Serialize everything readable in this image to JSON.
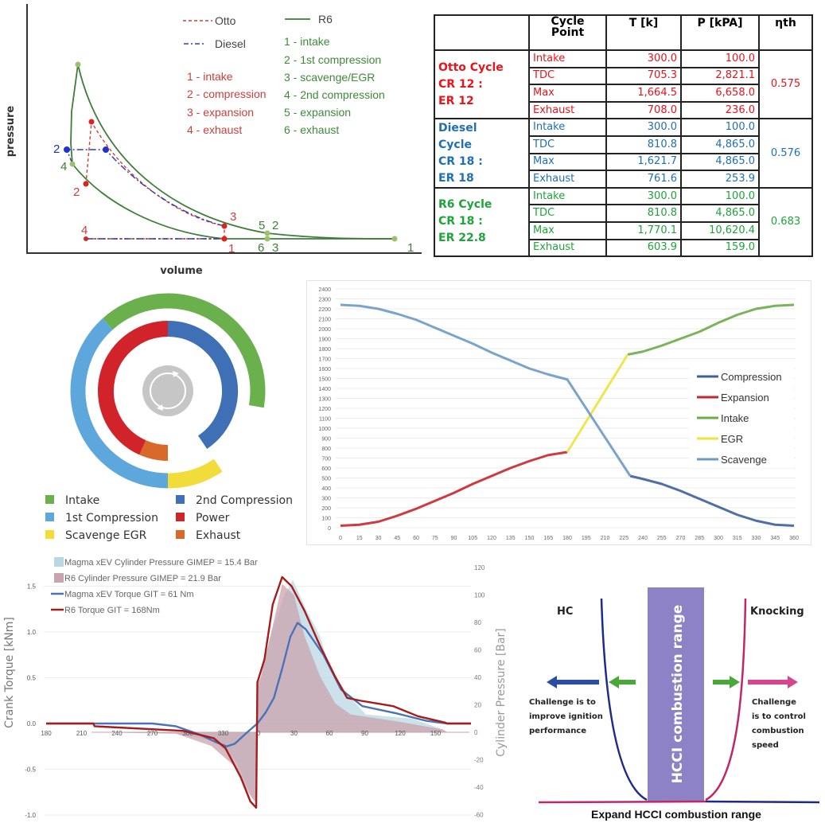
{
  "chart_data": [
    {
      "type": "line",
      "xlabel": "volume",
      "ylabel": "pressure",
      "legend": [
        {
          "name": "Otto",
          "color": "#c8413e",
          "style": "dashed"
        },
        {
          "name": "Diesel",
          "color": "#2f3fa8",
          "style": "dash-dot"
        },
        {
          "name": "R6",
          "color": "#3f7d3a",
          "style": "solid"
        }
      ],
      "otto_points": [
        "1 - intake",
        "2 - compression",
        "3 - expansion",
        "4 - exhaust"
      ],
      "r6_points": [
        "1 - intake",
        "2 - 1st compression",
        "3 - scavenge/EGR",
        "4 - 2nd compression",
        "5 - expansion",
        "6 - exhaust"
      ],
      "point_labels": {
        "diesel_2": "2",
        "r6_4": "4",
        "otto_2": "2",
        "otto_3": "3",
        "otto_4": "4",
        "otto_1": "1",
        "r6_5": "5",
        "r6_2": "2",
        "r6_6": "6",
        "r6_3": "3",
        "r6_1": "1"
      }
    },
    {
      "type": "table",
      "headers": [
        "",
        "Cycle Point",
        "T [k]",
        "P [kPA]",
        "ηth"
      ],
      "groups": [
        {
          "name": [
            "Otto Cycle",
            "CR 12 :",
            "ER 12"
          ],
          "color": "#e8141b",
          "eta": "0.575",
          "rows": [
            [
              "Intake",
              "300.0",
              "100.0"
            ],
            [
              "TDC",
              "705.3",
              "2,821.1"
            ],
            [
              "Max",
              "1,664.5",
              "6,658.0"
            ],
            [
              "Exhaust",
              "708.0",
              "236.0"
            ]
          ]
        },
        {
          "name": [
            "Diesel",
            "Cycle",
            "CR 18 :",
            "ER 18"
          ],
          "color": "#1f6fb4",
          "eta": "0.576",
          "rows": [
            [
              "Intake",
              "300.0",
              "100.0"
            ],
            [
              "TDC",
              "810.8",
              "4,865.0"
            ],
            [
              "Max",
              "1,621.7",
              "4,865.0"
            ],
            [
              "Exhaust",
              "761.6",
              "253.9"
            ]
          ]
        },
        {
          "name": [
            "R6 Cycle",
            "CR 18 :",
            "ER 22.8"
          ],
          "color": "#1fa33b",
          "eta": "0.683",
          "rows": [
            [
              "Intake",
              "300.0",
              "100.0"
            ],
            [
              "TDC",
              "810.8",
              "4,865.0"
            ],
            [
              "Max",
              "1,770.1",
              "10,620.4"
            ],
            [
              "Exhaust",
              "603.9",
              "159.0"
            ]
          ]
        }
      ]
    },
    {
      "type": "donut",
      "unit": "crank degrees",
      "outer_ring": [
        {
          "label": "1st Compression",
          "start": 180,
          "end": 318,
          "color": "#5ea7dd"
        },
        {
          "label": "Intake",
          "start": 318,
          "end": 460,
          "color": "#6ab04c"
        },
        {
          "label": "Scavenge EGR",
          "start": 146,
          "end": 180,
          "color": "#f1dc3a"
        }
      ],
      "inner_ring": [
        {
          "label": "2nd Compression",
          "start": 0,
          "end": 146,
          "color": "#3f6fb5"
        },
        {
          "label": "Exhaust",
          "start": 180,
          "end": 204,
          "color": "#d9692a"
        },
        {
          "label": "Power",
          "start": 204,
          "end": 360,
          "color": "#d1232a"
        }
      ],
      "legend": [
        {
          "label": "Intake",
          "color": "#6ab04c"
        },
        {
          "label": "2nd Compression",
          "color": "#3f6fb5"
        },
        {
          "label": "1st Compression",
          "color": "#5ea7dd"
        },
        {
          "label": "Power",
          "color": "#d1232a"
        },
        {
          "label": "Scavenge EGR",
          "color": "#f1dc3a"
        },
        {
          "label": "Exhaust",
          "color": "#d9692a"
        }
      ],
      "center_icon": "cycle-arrows-icon"
    },
    {
      "type": "line",
      "xlim": [
        0,
        360
      ],
      "ylim": [
        0,
        2400
      ],
      "x_ticks": [
        0,
        15,
        30,
        45,
        60,
        75,
        90,
        105,
        120,
        135,
        150,
        165,
        180,
        195,
        210,
        225,
        240,
        255,
        270,
        285,
        300,
        315,
        330,
        345,
        360
      ],
      "y_ticks": [
        0,
        100,
        200,
        300,
        400,
        500,
        600,
        700,
        800,
        900,
        1000,
        1100,
        1200,
        1300,
        1400,
        1500,
        1600,
        1700,
        1800,
        1900,
        2000,
        2100,
        2200,
        2300,
        2400
      ],
      "grid": "horizontal",
      "legend_position": "right",
      "series": [
        {
          "name": "Compression",
          "color": "#3d5f9e",
          "points": [
            [
              230,
              520
            ],
            [
              240,
              490
            ],
            [
              255,
              440
            ],
            [
              270,
              370
            ],
            [
              285,
              290
            ],
            [
              300,
              210
            ],
            [
              315,
              130
            ],
            [
              330,
              70
            ],
            [
              345,
              30
            ],
            [
              360,
              20
            ]
          ]
        },
        {
          "name": "Expansion",
          "color": "#c8262b",
          "points": [
            [
              0,
              20
            ],
            [
              15,
              30
            ],
            [
              30,
              60
            ],
            [
              45,
              120
            ],
            [
              60,
              190
            ],
            [
              75,
              270
            ],
            [
              90,
              350
            ],
            [
              105,
              440
            ],
            [
              120,
              520
            ],
            [
              135,
              600
            ],
            [
              150,
              670
            ],
            [
              165,
              730
            ],
            [
              180,
              760
            ]
          ]
        },
        {
          "name": "Intake",
          "color": "#6aac46",
          "points": [
            [
              228,
              1740
            ],
            [
              240,
              1770
            ],
            [
              255,
              1830
            ],
            [
              270,
              1900
            ],
            [
              285,
              1970
            ],
            [
              300,
              2060
            ],
            [
              315,
              2140
            ],
            [
              330,
              2200
            ],
            [
              345,
              2230
            ],
            [
              360,
              2240
            ]
          ]
        },
        {
          "name": "EGR",
          "color": "#ede33a",
          "points": [
            [
              180,
              760
            ],
            [
              228,
              1740
            ]
          ]
        },
        {
          "name": "Scavenge",
          "color": "#6b9ac4",
          "points": [
            [
              0,
              2240
            ],
            [
              15,
              2230
            ],
            [
              30,
              2200
            ],
            [
              45,
              2150
            ],
            [
              60,
              2090
            ],
            [
              75,
              2010
            ],
            [
              90,
              1930
            ],
            [
              105,
              1850
            ],
            [
              120,
              1760
            ],
            [
              135,
              1680
            ],
            [
              150,
              1600
            ],
            [
              165,
              1540
            ],
            [
              180,
              1490
            ],
            [
              230,
              520
            ]
          ]
        }
      ]
    },
    {
      "type": "line",
      "ylabel": "Crank Torque [kNm]",
      "y2label": "Cylinder Pressure [Bar]",
      "x_tick_labels": [
        "180",
        "210",
        "240",
        "270",
        "300",
        "330",
        "0",
        "30",
        "60",
        "90",
        "120",
        "150"
      ],
      "ylim": [
        -1.0,
        1.5
      ],
      "y_ticks": [
        "-1.0",
        "-0.5",
        "0.0",
        "0.5",
        "1.0",
        "1.5"
      ],
      "y2lim": [
        -60,
        120
      ],
      "y2_ticks": [
        "-60",
        "-40",
        "-20",
        "0",
        "20",
        "40",
        "60",
        "80",
        "100",
        "120"
      ],
      "legend_position": "top-left",
      "series": [
        {
          "name": "Magma xEV Cylinder Pressure GIMEP = 15.4 Bar",
          "kind": "area",
          "axis": "right",
          "color": "#b9d8e4",
          "points": [
            [
              220,
              0
            ],
            [
              290,
              -1
            ],
            [
              322,
              -6
            ],
            [
              340,
              -20
            ],
            [
              355,
              -48
            ],
            [
              358,
              -50
            ],
            [
              359,
              30
            ],
            [
              370,
              70
            ],
            [
              382,
              100
            ],
            [
              389,
              111
            ],
            [
              400,
              90
            ],
            [
              412,
              70
            ],
            [
              421,
              45
            ],
            [
              440,
              23
            ],
            [
              451,
              13
            ],
            [
              490,
              10
            ],
            [
              516,
              2
            ],
            [
              520,
              0
            ]
          ]
        },
        {
          "name": "R6 Cylinder Pressure GIMEP = 21.9 Bar",
          "kind": "area",
          "axis": "right",
          "color": "#c9a3ad",
          "points": [
            [
              220,
              0
            ],
            [
              290,
              -1
            ],
            [
              320,
              -10
            ],
            [
              340,
              -25
            ],
            [
              352,
              -45
            ],
            [
              358,
              -52
            ],
            [
              359,
              35
            ],
            [
              362,
              40
            ],
            [
              370,
              70
            ],
            [
              380,
              108
            ],
            [
              390,
              100
            ],
            [
              399,
              70
            ],
            [
              412,
              41
            ],
            [
              425,
              21
            ],
            [
              438,
              13
            ],
            [
              477,
              8
            ],
            [
              516,
              2
            ],
            [
              520,
              0
            ]
          ]
        },
        {
          "name": "Magma xEV Torque GIT = 61 Nm",
          "kind": "line",
          "axis": "left",
          "color": "#4a72b8",
          "points": [
            [
              180,
              0
            ],
            [
              270,
              0
            ],
            [
              290,
              -0.03
            ],
            [
              310,
              -0.12
            ],
            [
              325,
              -0.21
            ],
            [
              333,
              -0.25
            ],
            [
              340,
              -0.22
            ],
            [
              350,
              -0.1
            ],
            [
              359,
              0
            ],
            [
              366,
              0.12
            ],
            [
              373,
              0.28
            ],
            [
              380,
              0.6
            ],
            [
              387,
              0.95
            ],
            [
              393,
              1.1
            ],
            [
              400,
              1.03
            ],
            [
              415,
              0.75
            ],
            [
              430,
              0.37
            ],
            [
              448,
              0.19
            ],
            [
              477,
              0.11
            ],
            [
              502,
              0.03
            ],
            [
              520,
              0
            ],
            [
              540,
              0
            ]
          ]
        },
        {
          "name": "R6 Torque GIT =  168Nm",
          "kind": "line",
          "axis": "left",
          "color": "#a51c1c",
          "points": [
            [
              180,
              0
            ],
            [
              220,
              0
            ],
            [
              221,
              -0.03
            ],
            [
              296,
              -0.08
            ],
            [
              322,
              -0.16
            ],
            [
              332,
              -0.27
            ],
            [
              345,
              -0.59
            ],
            [
              353,
              -0.85
            ],
            [
              358,
              -0.92
            ],
            [
              359,
              0.45
            ],
            [
              365,
              0.7
            ],
            [
              372,
              1.3
            ],
            [
              380,
              1.6
            ],
            [
              388,
              1.5
            ],
            [
              399,
              1.23
            ],
            [
              412,
              0.85
            ],
            [
              425,
              0.51
            ],
            [
              435,
              0.28
            ],
            [
              446,
              0.25
            ],
            [
              460,
              0.22
            ],
            [
              474,
              0.19
            ],
            [
              495,
              0.08
            ],
            [
              518,
              0.01
            ],
            [
              520,
              0
            ],
            [
              540,
              0
            ]
          ]
        }
      ]
    }
  ],
  "hcci_diagram": {
    "band_label": "HCCI combustion range",
    "left_label": "HC",
    "right_label": "Knocking",
    "left_challenge": [
      "Challenge is to",
      "improve ignition",
      "performance"
    ],
    "right_challenge": [
      "Challenge",
      "is to control",
      "combustion",
      "speed"
    ],
    "caption": "Expand HCCI combustion range",
    "colors": {
      "band": "#8e82c6",
      "hc_curve": "#1d2a8a",
      "knock_curve": "#c0266a",
      "green_arrow": "#4aa83a",
      "blue_arrow": "#2b4ea2",
      "pink_arrow": "#d6468e"
    }
  }
}
